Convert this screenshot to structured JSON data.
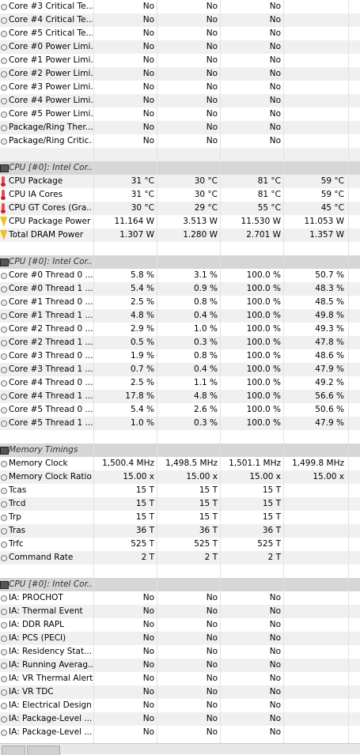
{
  "rows": [
    {
      "type": "data",
      "icon": "circle",
      "name": "Core #3 Critical Te...",
      "v": [
        "No",
        "No",
        "No",
        ""
      ]
    },
    {
      "type": "data",
      "icon": "circle",
      "name": "Core #4 Critical Te...",
      "v": [
        "No",
        "No",
        "No",
        ""
      ]
    },
    {
      "type": "data",
      "icon": "circle",
      "name": "Core #5 Critical Te...",
      "v": [
        "No",
        "No",
        "No",
        ""
      ]
    },
    {
      "type": "data",
      "icon": "circle",
      "name": "Core #0 Power Limi...",
      "v": [
        "No",
        "No",
        "No",
        ""
      ]
    },
    {
      "type": "data",
      "icon": "circle",
      "name": "Core #1 Power Limi...",
      "v": [
        "No",
        "No",
        "No",
        ""
      ]
    },
    {
      "type": "data",
      "icon": "circle",
      "name": "Core #2 Power Limi...",
      "v": [
        "No",
        "No",
        "No",
        ""
      ]
    },
    {
      "type": "data",
      "icon": "circle",
      "name": "Core #3 Power Limi...",
      "v": [
        "No",
        "No",
        "No",
        ""
      ]
    },
    {
      "type": "data",
      "icon": "circle",
      "name": "Core #4 Power Limi...",
      "v": [
        "No",
        "No",
        "No",
        ""
      ]
    },
    {
      "type": "data",
      "icon": "circle",
      "name": "Core #5 Power Limi...",
      "v": [
        "No",
        "No",
        "No",
        ""
      ]
    },
    {
      "type": "data",
      "icon": "circle",
      "name": "Package/Ring Ther...",
      "v": [
        "No",
        "No",
        "No",
        ""
      ]
    },
    {
      "type": "data",
      "icon": "circle",
      "name": "Package/Ring Critic...",
      "v": [
        "No",
        "No",
        "No",
        ""
      ]
    },
    {
      "type": "blank"
    },
    {
      "type": "header",
      "icon": "chip",
      "name": "CPU [#0]: Intel Cor..."
    },
    {
      "type": "data",
      "icon": "thermometer",
      "name": "CPU Package",
      "v": [
        "31 °C",
        "30 °C",
        "81 °C",
        "59 °C"
      ]
    },
    {
      "type": "data",
      "icon": "thermometer",
      "name": "CPU IA Cores",
      "v": [
        "31 °C",
        "30 °C",
        "81 °C",
        "59 °C"
      ]
    },
    {
      "type": "data",
      "icon": "thermometer",
      "name": "CPU GT Cores (Gra...",
      "v": [
        "30 °C",
        "29 °C",
        "55 °C",
        "45 °C"
      ]
    },
    {
      "type": "data",
      "icon": "bolt",
      "name": "CPU Package Power",
      "v": [
        "11.164 W",
        "3.513 W",
        "11.530 W",
        "11.053 W"
      ]
    },
    {
      "type": "data",
      "icon": "bolt",
      "name": "Total DRAM Power",
      "v": [
        "1.307 W",
        "1.280 W",
        "2.701 W",
        "1.357 W"
      ]
    },
    {
      "type": "blank"
    },
    {
      "type": "header",
      "icon": "chip",
      "name": "CPU [#0]: Intel Cor..."
    },
    {
      "type": "data",
      "icon": "circle",
      "name": "Core #0 Thread 0 ...",
      "v": [
        "5.8 %",
        "3.1 %",
        "100.0 %",
        "50.7 %"
      ]
    },
    {
      "type": "data",
      "icon": "circle",
      "name": "Core #0 Thread 1 ...",
      "v": [
        "5.4 %",
        "0.9 %",
        "100.0 %",
        "48.3 %"
      ]
    },
    {
      "type": "data",
      "icon": "circle",
      "name": "Core #1 Thread 0 ...",
      "v": [
        "2.5 %",
        "0.8 %",
        "100.0 %",
        "48.5 %"
      ]
    },
    {
      "type": "data",
      "icon": "circle",
      "name": "Core #1 Thread 1 ...",
      "v": [
        "4.8 %",
        "0.4 %",
        "100.0 %",
        "49.8 %"
      ]
    },
    {
      "type": "data",
      "icon": "circle",
      "name": "Core #2 Thread 0 ...",
      "v": [
        "2.9 %",
        "1.0 %",
        "100.0 %",
        "49.3 %"
      ]
    },
    {
      "type": "data",
      "icon": "circle",
      "name": "Core #2 Thread 1 ...",
      "v": [
        "0.5 %",
        "0.3 %",
        "100.0 %",
        "47.8 %"
      ]
    },
    {
      "type": "data",
      "icon": "circle",
      "name": "Core #3 Thread 0 ...",
      "v": [
        "1.9 %",
        "0.8 %",
        "100.0 %",
        "48.6 %"
      ]
    },
    {
      "type": "data",
      "icon": "circle",
      "name": "Core #3 Thread 1 ...",
      "v": [
        "0.7 %",
        "0.4 %",
        "100.0 %",
        "47.9 %"
      ]
    },
    {
      "type": "data",
      "icon": "circle",
      "name": "Core #4 Thread 0 ...",
      "v": [
        "2.5 %",
        "1.1 %",
        "100.0 %",
        "49.2 %"
      ]
    },
    {
      "type": "data",
      "icon": "circle",
      "name": "Core #4 Thread 1 ...",
      "v": [
        "17.8 %",
        "4.8 %",
        "100.0 %",
        "56.6 %"
      ]
    },
    {
      "type": "data",
      "icon": "circle",
      "name": "Core #5 Thread 0 ...",
      "v": [
        "5.4 %",
        "2.6 %",
        "100.0 %",
        "50.6 %"
      ]
    },
    {
      "type": "data",
      "icon": "circle",
      "name": "Core #5 Thread 1 ...",
      "v": [
        "1.0 %",
        "0.3 %",
        "100.0 %",
        "47.9 %"
      ]
    },
    {
      "type": "blank"
    },
    {
      "type": "header",
      "icon": "chip",
      "name": "Memory Timings"
    },
    {
      "type": "data",
      "icon": "circle",
      "name": "Memory Clock",
      "v": [
        "1,500.4 MHz",
        "1,498.5 MHz",
        "1,501.1 MHz",
        "1,499.8 MHz"
      ]
    },
    {
      "type": "data",
      "icon": "circle",
      "name": "Memory Clock Ratio",
      "v": [
        "15.00 x",
        "15.00 x",
        "15.00 x",
        "15.00 x"
      ]
    },
    {
      "type": "data",
      "icon": "circle",
      "name": "Tcas",
      "v": [
        "15 T",
        "15 T",
        "15 T",
        ""
      ]
    },
    {
      "type": "data",
      "icon": "circle",
      "name": "Trcd",
      "v": [
        "15 T",
        "15 T",
        "15 T",
        ""
      ]
    },
    {
      "type": "data",
      "icon": "circle",
      "name": "Trp",
      "v": [
        "15 T",
        "15 T",
        "15 T",
        ""
      ]
    },
    {
      "type": "data",
      "icon": "circle",
      "name": "Tras",
      "v": [
        "36 T",
        "36 T",
        "36 T",
        ""
      ]
    },
    {
      "type": "data",
      "icon": "circle",
      "name": "Trfc",
      "v": [
        "525 T",
        "525 T",
        "525 T",
        ""
      ]
    },
    {
      "type": "data",
      "icon": "circle",
      "name": "Command Rate",
      "v": [
        "2 T",
        "2 T",
        "2 T",
        ""
      ]
    },
    {
      "type": "blank"
    },
    {
      "type": "header",
      "icon": "chip",
      "name": "CPU [#0]: Intel Cor..."
    },
    {
      "type": "data",
      "icon": "circle",
      "name": "IA: PROCHOT",
      "v": [
        "No",
        "No",
        "No",
        ""
      ]
    },
    {
      "type": "data",
      "icon": "circle",
      "name": "IA: Thermal Event",
      "v": [
        "No",
        "No",
        "No",
        ""
      ]
    },
    {
      "type": "data",
      "icon": "circle",
      "name": "IA: DDR RAPL",
      "v": [
        "No",
        "No",
        "No",
        ""
      ]
    },
    {
      "type": "data",
      "icon": "circle",
      "name": "IA: PCS (PECI)",
      "v": [
        "No",
        "No",
        "No",
        ""
      ]
    },
    {
      "type": "data",
      "icon": "circle",
      "name": "IA: Residency Stat...",
      "v": [
        "No",
        "No",
        "No",
        ""
      ]
    },
    {
      "type": "data",
      "icon": "circle",
      "name": "IA: Running Averag...",
      "v": [
        "No",
        "No",
        "No",
        ""
      ]
    },
    {
      "type": "data",
      "icon": "circle",
      "name": "IA: VR Thermal Alert",
      "v": [
        "No",
        "No",
        "No",
        ""
      ]
    },
    {
      "type": "data",
      "icon": "circle",
      "name": "IA: VR TDC",
      "v": [
        "No",
        "No",
        "No",
        ""
      ]
    },
    {
      "type": "data",
      "icon": "circle",
      "name": "IA: Electrical Design...",
      "v": [
        "No",
        "No",
        "No",
        ""
      ]
    },
    {
      "type": "data",
      "icon": "circle",
      "name": "IA: Package-Level ...",
      "v": [
        "No",
        "No",
        "No",
        ""
      ]
    },
    {
      "type": "data",
      "icon": "circle",
      "name": "IA: Package-Level ...",
      "v": [
        "No",
        "No",
        "No",
        ""
      ]
    }
  ]
}
